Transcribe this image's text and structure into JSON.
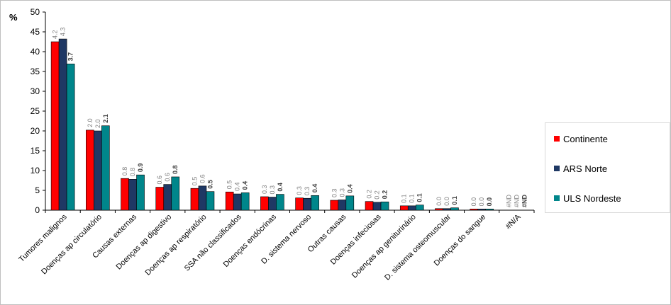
{
  "chart_data": {
    "type": "bar",
    "ylabel": "%",
    "ylim": [
      0,
      50
    ],
    "yticks": [
      "0",
      "5",
      "10",
      "15",
      "20",
      "25",
      "30",
      "35",
      "40",
      "45",
      "50"
    ],
    "categories": [
      "Tumores malignos",
      "Doenças ap circulatório",
      "Causas externas",
      "Doenças ap digestivo",
      "Doenças ap respiratório",
      "SSA não classificados",
      "Doenças endócrinas",
      "D. sistema nervoso",
      "Outras causas",
      "Doenças infeciosas",
      "Doenças ap geniturinário",
      "D. sistema osteomuscular",
      "Doenças do sangue",
      "#N/A"
    ],
    "series": [
      {
        "name": "Continente",
        "color": "#ff0000",
        "values": [
          42.5,
          20.2,
          8.0,
          5.8,
          5.5,
          4.6,
          3.4,
          3.1,
          2.5,
          2.2,
          1.1,
          0.4,
          0.3,
          null
        ],
        "labels": [
          "4.2",
          "2.0",
          "0.8",
          "0.6",
          "0.5",
          "0.5",
          "0.3",
          "0.3",
          "0.3",
          "0.2",
          "0.1",
          "0.0",
          "0.0",
          "#ND"
        ]
      },
      {
        "name": "ARS Norte",
        "color": "#1f3864",
        "values": [
          43.2,
          20.0,
          7.8,
          6.5,
          6.1,
          4.1,
          3.3,
          3.0,
          2.6,
          2.0,
          1.1,
          0.4,
          0.3,
          null
        ],
        "labels": [
          "4.3",
          "2.0",
          "0.8",
          "0.6",
          "0.6",
          "0.4",
          "0.3",
          "0.3",
          "0.3",
          "0.2",
          "0.1",
          "0.0",
          "0.0",
          "#ND"
        ]
      },
      {
        "name": "ULS Nordeste",
        "color": "#00868b",
        "values": [
          36.9,
          21.3,
          8.9,
          8.4,
          4.7,
          4.4,
          4.0,
          3.7,
          3.6,
          2.1,
          1.3,
          0.6,
          0.3,
          null
        ],
        "labels": [
          "3.7",
          "2.1",
          "0.9",
          "0.8",
          "0.5",
          "0.4",
          "0.4",
          "0.4",
          "0.4",
          "0.2",
          "0.1",
          "0.1",
          "0.0",
          "#ND"
        ]
      }
    ],
    "grid": false,
    "legend": "right"
  }
}
